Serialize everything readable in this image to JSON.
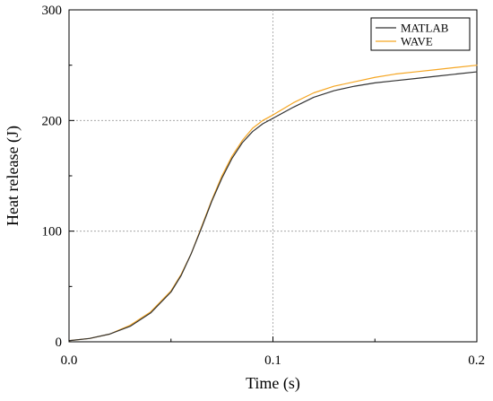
{
  "chart_data": {
    "type": "line",
    "xlabel": "Time (s)",
    "ylabel": "Heat release (J)",
    "xlim": [
      0,
      0.2
    ],
    "ylim": [
      0,
      300
    ],
    "x_ticks": [
      0,
      0.1,
      0.2
    ],
    "x_tick_labels": [
      "0.0",
      "0.1",
      "0.2"
    ],
    "y_ticks": [
      0,
      100,
      200,
      300
    ],
    "y_tick_labels": [
      "0",
      "100",
      "200",
      "300"
    ],
    "grid": true,
    "legend_position": "top-right",
    "series": [
      {
        "name": "MATLAB",
        "color": "#333333",
        "x": [
          0,
          0.01,
          0.02,
          0.03,
          0.04,
          0.05,
          0.055,
          0.06,
          0.065,
          0.07,
          0.075,
          0.08,
          0.085,
          0.09,
          0.095,
          0.1,
          0.11,
          0.12,
          0.13,
          0.14,
          0.15,
          0.16,
          0.17,
          0.18,
          0.19,
          0.2
        ],
        "y": [
          1,
          3,
          7,
          14,
          26,
          45,
          60,
          80,
          103,
          127,
          148,
          166,
          180,
          190,
          197,
          202,
          212,
          221,
          227,
          231,
          234,
          236,
          238,
          240,
          242,
          244
        ]
      },
      {
        "name": "WAVE",
        "color": "#F5A623",
        "x": [
          0,
          0.01,
          0.02,
          0.03,
          0.04,
          0.05,
          0.055,
          0.06,
          0.065,
          0.07,
          0.075,
          0.08,
          0.085,
          0.09,
          0.095,
          0.1,
          0.11,
          0.12,
          0.13,
          0.14,
          0.15,
          0.16,
          0.17,
          0.18,
          0.19,
          0.2
        ],
        "y": [
          1,
          3,
          7,
          15,
          27,
          46,
          61,
          80,
          104,
          128,
          150,
          168,
          182,
          193,
          200,
          205,
          216,
          225,
          231,
          235,
          239,
          242,
          244,
          246,
          248,
          250
        ]
      }
    ]
  }
}
